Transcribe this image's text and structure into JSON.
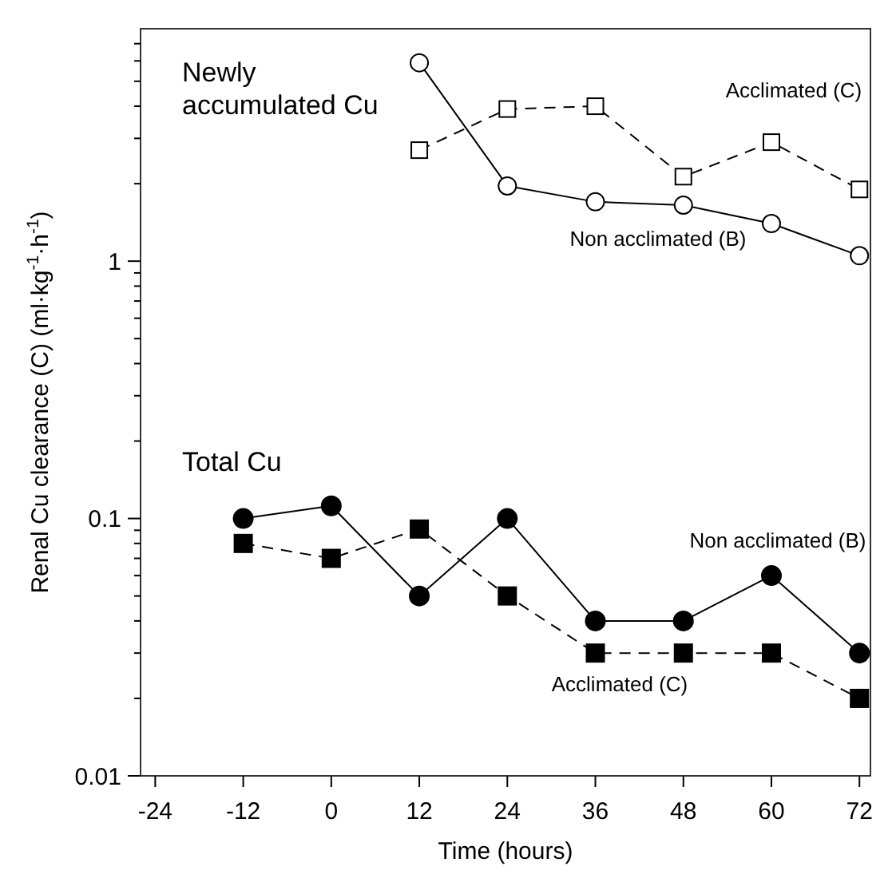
{
  "chart_data": {
    "type": "line",
    "xlabel": "Time (hours)",
    "ylabel": "Renal Cu clearance (C) (ml·kg$^{-1}$·h$^{-1}$)",
    "xlim": [
      -26,
      73.5
    ],
    "xticks": [
      -24,
      -12,
      0,
      12,
      24,
      36,
      48,
      60,
      72
    ],
    "ylim": [
      0.01,
      8
    ],
    "log": true,
    "yticks": [
      0.01,
      {
        "value": 0.02,
        "label": null
      },
      {
        "value": 0.03,
        "label": null
      },
      {
        "value": 0.04,
        "label": null
      },
      {
        "value": 0.05,
        "label": null
      },
      {
        "value": 0.06,
        "label": null
      },
      {
        "value": 0.07,
        "label": null
      },
      {
        "value": 0.08,
        "label": null
      },
      {
        "value": 0.09,
        "label": null
      },
      0.1,
      {
        "value": 0.2,
        "label": null
      },
      {
        "value": 0.3,
        "label": null
      },
      {
        "value": 0.4,
        "label": null
      },
      {
        "value": 0.5,
        "label": null
      },
      {
        "value": 0.6,
        "label": null
      },
      {
        "value": 0.7,
        "label": null
      },
      {
        "value": 0.8,
        "label": null
      },
      {
        "value": 0.9,
        "label": null
      },
      1,
      {
        "value": 2,
        "label": null
      },
      {
        "value": 3,
        "label": null
      },
      {
        "value": 4,
        "label": null
      },
      {
        "value": 5,
        "label": null
      },
      {
        "value": 6,
        "label": null
      },
      {
        "value": 7,
        "label": null
      }
    ],
    "grid": false,
    "series": [
      {
        "color": "#000000",
        "marker": "circle",
        "line_style": "solid",
        "x": [
          12,
          24,
          36,
          48,
          60,
          72
        ],
        "values": [
          5.9,
          1.96,
          1.7,
          1.65,
          1.4,
          1.05
        ]
      },
      {
        "color": "#000000",
        "marker": "square",
        "line_style": "dashed",
        "x": [
          12,
          24,
          36,
          48,
          60,
          72
        ],
        "values": [
          2.7,
          3.9,
          4.0,
          2.13,
          2.9,
          1.9
        ]
      },
      {
        "color": "#000000",
        "marker": "circle",
        "line_style": "solid",
        "x": [
          -12,
          0,
          12,
          24,
          36,
          48,
          60,
          72
        ],
        "values": [
          0.1,
          0.112,
          0.05,
          0.1,
          0.04,
          0.04,
          0.06,
          0.03
        ]
      },
      {
        "color": "#000000",
        "marker": "square",
        "line_style": "dashed",
        "x": [
          -12,
          0,
          12,
          24,
          36,
          48,
          60,
          72
        ],
        "values": [
          0.08,
          0.07,
          0.091,
          0.05,
          0.03,
          0.03,
          0.03,
          0.02
        ]
      }
    ],
    "annotations": [
      "Newly\naccumulated Cu",
      "Acclimated (C)",
      "Non acclimated (B)",
      "Total Cu",
      "Non acclimated (B)",
      "Acclimated (C)"
    ]
  }
}
